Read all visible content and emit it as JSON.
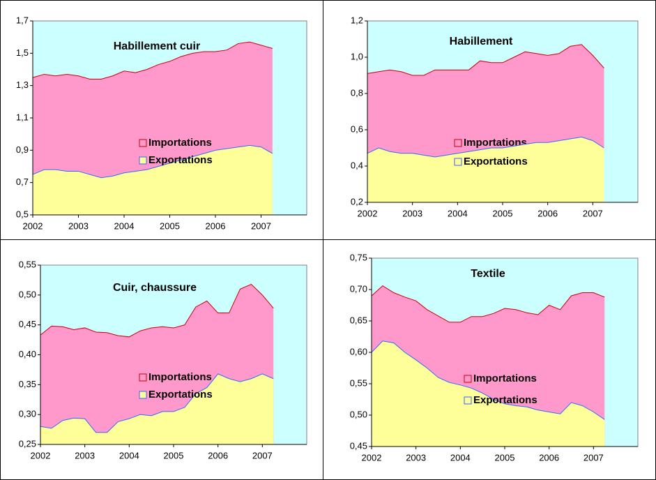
{
  "chart_data": [
    {
      "type": "area",
      "title": "Habillement cuir",
      "x": [
        2002,
        2002.25,
        2002.5,
        2002.75,
        2003,
        2003.25,
        2003.5,
        2003.75,
        2004,
        2004.25,
        2004.5,
        2004.75,
        2005,
        2005.25,
        2005.5,
        2005.75,
        2006,
        2006.25,
        2006.5,
        2006.75,
        2007,
        2007.25
      ],
      "series": [
        {
          "name": "Importations",
          "color": "#ff99cc",
          "values": [
            1.35,
            1.37,
            1.36,
            1.37,
            1.36,
            1.34,
            1.34,
            1.36,
            1.39,
            1.38,
            1.4,
            1.43,
            1.45,
            1.48,
            1.5,
            1.51,
            1.51,
            1.52,
            1.56,
            1.57,
            1.55,
            1.53
          ]
        },
        {
          "name": "Exportations",
          "color": "#ffff99",
          "values": [
            0.75,
            0.78,
            0.78,
            0.77,
            0.77,
            0.75,
            0.73,
            0.74,
            0.76,
            0.77,
            0.78,
            0.8,
            0.82,
            0.84,
            0.86,
            0.88,
            0.9,
            0.91,
            0.92,
            0.93,
            0.92,
            0.88
          ]
        }
      ],
      "xlim": [
        2002,
        2008
      ],
      "xticks": [
        2002,
        2003,
        2004,
        2005,
        2006,
        2007
      ],
      "ylim": [
        0.5,
        1.7
      ],
      "yticks": [
        {
          "value": 0.5,
          "label": "0,5"
        },
        {
          "value": 0.7,
          "label": "0,7"
        },
        {
          "value": 0.9,
          "label": "0,9"
        },
        {
          "value": 1.1,
          "label": "1,1"
        },
        {
          "value": 1.3,
          "label": "1,3"
        },
        {
          "value": 1.5,
          "label": "1,5"
        },
        {
          "value": 1.7,
          "label": "1,7"
        }
      ]
    },
    {
      "type": "area",
      "title": "Habillement",
      "x": [
        2002,
        2002.25,
        2002.5,
        2002.75,
        2003,
        2003.25,
        2003.5,
        2003.75,
        2004,
        2004.25,
        2004.5,
        2004.75,
        2005,
        2005.25,
        2005.5,
        2005.75,
        2006,
        2006.25,
        2006.5,
        2006.75,
        2007,
        2007.25
      ],
      "series": [
        {
          "name": "Importations",
          "color": "#ff99cc",
          "values": [
            0.91,
            0.92,
            0.93,
            0.92,
            0.9,
            0.9,
            0.93,
            0.93,
            0.93,
            0.93,
            0.98,
            0.97,
            0.97,
            1.0,
            1.03,
            1.02,
            1.01,
            1.02,
            1.06,
            1.07,
            1.01,
            0.94
          ]
        },
        {
          "name": "Exportations",
          "color": "#ffff99",
          "values": [
            0.47,
            0.5,
            0.48,
            0.47,
            0.47,
            0.46,
            0.45,
            0.46,
            0.47,
            0.48,
            0.49,
            0.5,
            0.5,
            0.51,
            0.52,
            0.53,
            0.53,
            0.54,
            0.55,
            0.56,
            0.54,
            0.5
          ]
        }
      ],
      "xlim": [
        2002,
        2008
      ],
      "xticks": [
        2002,
        2003,
        2004,
        2005,
        2006,
        2007
      ],
      "ylim": [
        0.2,
        1.2
      ],
      "yticks": [
        {
          "value": 0.2,
          "label": "0,2"
        },
        {
          "value": 0.4,
          "label": "0,4"
        },
        {
          "value": 0.6,
          "label": "0,6"
        },
        {
          "value": 0.8,
          "label": "0,8"
        },
        {
          "value": 1.0,
          "label": "1,0"
        },
        {
          "value": 1.2,
          "label": "1,2"
        }
      ]
    },
    {
      "type": "area",
      "title": "Cuir, chaussure",
      "x": [
        2002,
        2002.25,
        2002.5,
        2002.75,
        2003,
        2003.25,
        2003.5,
        2003.75,
        2004,
        2004.25,
        2004.5,
        2004.75,
        2005,
        2005.25,
        2005.5,
        2005.75,
        2006,
        2006.25,
        2006.5,
        2006.75,
        2007,
        2007.25
      ],
      "series": [
        {
          "name": "Importations",
          "color": "#ff99cc",
          "values": [
            0.433,
            0.448,
            0.447,
            0.442,
            0.445,
            0.438,
            0.437,
            0.432,
            0.43,
            0.44,
            0.445,
            0.447,
            0.445,
            0.45,
            0.48,
            0.49,
            0.47,
            0.47,
            0.51,
            0.518,
            0.5,
            0.478
          ]
        },
        {
          "name": "Exportations",
          "color": "#ffff99",
          "values": [
            0.28,
            0.277,
            0.29,
            0.294,
            0.293,
            0.27,
            0.27,
            0.288,
            0.293,
            0.3,
            0.298,
            0.305,
            0.305,
            0.312,
            0.335,
            0.345,
            0.368,
            0.36,
            0.355,
            0.36,
            0.368,
            0.36
          ]
        }
      ],
      "xlim": [
        2002,
        2008
      ],
      "xticks": [
        2002,
        2003,
        2004,
        2005,
        2006,
        2007
      ],
      "ylim": [
        0.25,
        0.55
      ],
      "yticks": [
        {
          "value": 0.25,
          "label": "0,25"
        },
        {
          "value": 0.3,
          "label": "0,30"
        },
        {
          "value": 0.35,
          "label": "0,35"
        },
        {
          "value": 0.4,
          "label": "0,40"
        },
        {
          "value": 0.45,
          "label": "0,45"
        },
        {
          "value": 0.5,
          "label": "0,50"
        },
        {
          "value": 0.55,
          "label": "0,55"
        }
      ]
    },
    {
      "type": "area",
      "title": "Textile",
      "x": [
        2002,
        2002.25,
        2002.5,
        2002.75,
        2003,
        2003.25,
        2003.5,
        2003.75,
        2004,
        2004.25,
        2004.5,
        2004.75,
        2005,
        2005.25,
        2005.5,
        2005.75,
        2006,
        2006.25,
        2006.5,
        2006.75,
        2007,
        2007.25
      ],
      "series": [
        {
          "name": "Importations",
          "color": "#ff99cc",
          "values": [
            0.69,
            0.706,
            0.695,
            0.688,
            0.682,
            0.668,
            0.658,
            0.648,
            0.648,
            0.657,
            0.657,
            0.662,
            0.67,
            0.668,
            0.663,
            0.66,
            0.675,
            0.668,
            0.69,
            0.695,
            0.695,
            0.688
          ]
        },
        {
          "name": "Exportations",
          "color": "#ffff99",
          "values": [
            0.6,
            0.618,
            0.615,
            0.6,
            0.588,
            0.575,
            0.56,
            0.552,
            0.548,
            0.543,
            0.535,
            0.525,
            0.518,
            0.515,
            0.513,
            0.508,
            0.505,
            0.502,
            0.52,
            0.515,
            0.505,
            0.493
          ]
        }
      ],
      "xlim": [
        2002,
        2008
      ],
      "xticks": [
        2002,
        2003,
        2004,
        2005,
        2006,
        2007
      ],
      "ylim": [
        0.45,
        0.75
      ],
      "yticks": [
        {
          "value": 0.45,
          "label": "0,45"
        },
        {
          "value": 0.5,
          "label": "0,50"
        },
        {
          "value": 0.55,
          "label": "0,55"
        },
        {
          "value": 0.6,
          "label": "0,60"
        },
        {
          "value": 0.65,
          "label": "0,65"
        },
        {
          "value": 0.7,
          "label": "0,70"
        },
        {
          "value": 0.75,
          "label": "0,75"
        }
      ]
    }
  ]
}
